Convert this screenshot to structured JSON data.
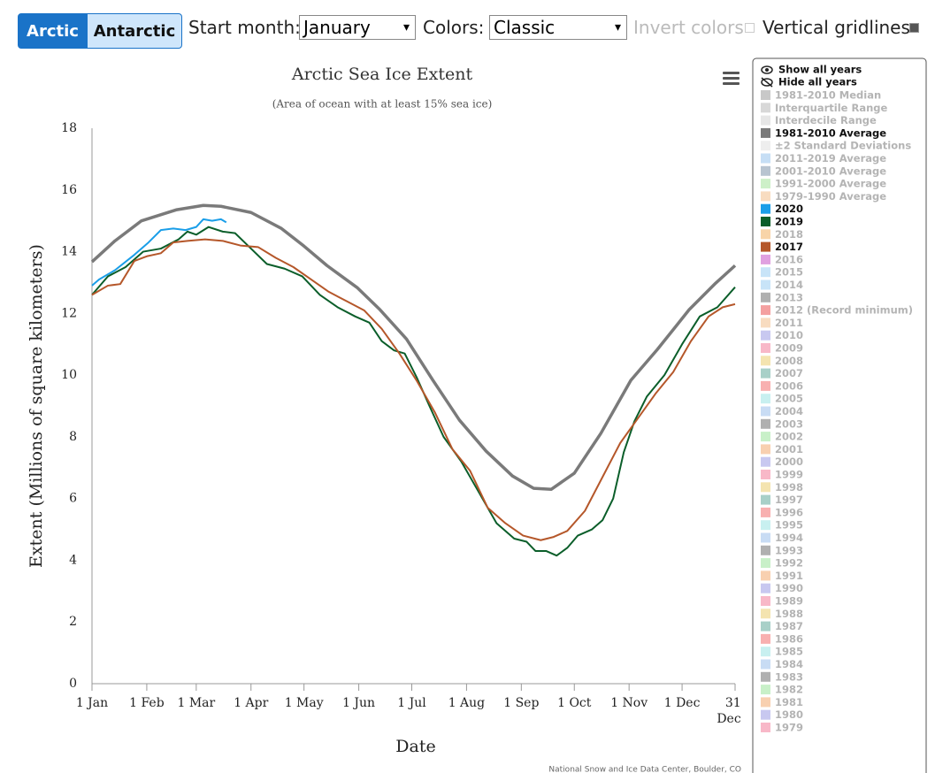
{
  "controls": {
    "hemisphere_buttons": [
      "Arctic",
      "Antarctic"
    ],
    "start_month_label": "Start month:",
    "start_month": "January",
    "colors_label": "Colors:",
    "colors": "Classic",
    "invert_colors": "Invert colors",
    "vertical_gridlines": "Vertical gridlines"
  },
  "chart_data": {
    "type": "line",
    "title": "Arctic Sea Ice Extent",
    "subtitle": "(Area of ocean with at least 15% sea ice)",
    "y_label": "Extent (Millions of square kilometers)",
    "x_label": "Date",
    "credit": "National Snow and Ice Data Center, Boulder, CO",
    "xlim": [
      1,
      365
    ],
    "ylim": [
      0,
      18
    ],
    "yticks": [
      0,
      2,
      4,
      6,
      8,
      10,
      12,
      14,
      16,
      18
    ],
    "grid": false,
    "xticks": [
      {
        "value": 1,
        "label": "1 Jan"
      },
      {
        "value": 32,
        "label": "1 Feb"
      },
      {
        "value": 60,
        "label": "1 Mar"
      },
      {
        "value": 91,
        "label": "1 Apr"
      },
      {
        "value": 121,
        "label": "1 May"
      },
      {
        "value": 152,
        "label": "1 Jun"
      },
      {
        "value": 182,
        "label": "1 Jul"
      },
      {
        "value": 213,
        "label": "1 Aug"
      },
      {
        "value": 244,
        "label": "1 Sep"
      },
      {
        "value": 274,
        "label": "1 Oct"
      },
      {
        "value": 305,
        "label": "1 Nov"
      },
      {
        "value": 335,
        "label": "1 Dec"
      },
      {
        "value": 365,
        "label": "31 Dec"
      }
    ],
    "series": [
      {
        "name": "1981-2010 Average",
        "color": "#7a7a7a",
        "width": 3.5,
        "x": [
          1,
          14,
          29,
          49,
          64,
          74,
          91,
          108,
          121,
          134,
          151,
          164,
          179,
          194,
          209,
          224,
          239,
          251,
          261,
          274,
          289,
          306,
          321,
          339,
          354,
          365
        ],
        "values": [
          13.67,
          14.35,
          15.0,
          15.36,
          15.5,
          15.47,
          15.27,
          14.76,
          14.18,
          13.55,
          12.84,
          12.12,
          11.17,
          9.83,
          8.54,
          7.54,
          6.73,
          6.33,
          6.3,
          6.82,
          8.11,
          9.83,
          10.83,
          12.12,
          12.98,
          13.55
        ]
      },
      {
        "name": "2020",
        "color": "#1a9ee8",
        "width": 2,
        "x": [
          1,
          5,
          14,
          25,
          33,
          40,
          47,
          54,
          60,
          64,
          69,
          74,
          77
        ],
        "values": [
          12.9,
          13.1,
          13.4,
          13.9,
          14.3,
          14.7,
          14.75,
          14.7,
          14.8,
          15.05,
          15.0,
          15.05,
          14.95
        ]
      },
      {
        "name": "2019",
        "color": "#0b5e2a",
        "width": 2,
        "x": [
          1,
          10,
          20,
          30,
          40,
          50,
          55,
          60,
          67,
          75,
          82,
          91,
          100,
          110,
          120,
          130,
          140,
          150,
          158,
          165,
          172,
          178,
          185,
          192,
          200,
          210,
          220,
          230,
          240,
          247,
          252,
          258,
          264,
          270,
          276,
          284,
          290,
          296,
          302,
          308,
          315,
          325,
          335,
          345,
          355,
          365
        ],
        "values": [
          12.6,
          13.2,
          13.5,
          14.0,
          14.1,
          14.4,
          14.65,
          14.55,
          14.8,
          14.65,
          14.6,
          14.1,
          13.6,
          13.45,
          13.2,
          12.6,
          12.2,
          11.9,
          11.7,
          11.1,
          10.8,
          10.7,
          9.9,
          9.0,
          8.0,
          7.2,
          6.2,
          5.2,
          4.7,
          4.6,
          4.3,
          4.3,
          4.15,
          4.4,
          4.8,
          5.0,
          5.3,
          6.0,
          7.5,
          8.5,
          9.3,
          10.0,
          11.0,
          11.9,
          12.2,
          12.85
        ]
      },
      {
        "name": "2017",
        "color": "#b5572a",
        "width": 2,
        "x": [
          1,
          10,
          17,
          25,
          32,
          40,
          47,
          55,
          65,
          75,
          85,
          95,
          105,
          115,
          125,
          135,
          145,
          155,
          165,
          175,
          185,
          195,
          205,
          215,
          225,
          235,
          245,
          255,
          262,
          270,
          280,
          290,
          300,
          310,
          320,
          330,
          340,
          350,
          358,
          365
        ],
        "values": [
          12.6,
          12.9,
          12.95,
          13.7,
          13.85,
          13.95,
          14.3,
          14.35,
          14.4,
          14.35,
          14.2,
          14.15,
          13.8,
          13.5,
          13.1,
          12.7,
          12.4,
          12.1,
          11.5,
          10.7,
          9.8,
          8.8,
          7.6,
          6.9,
          5.7,
          5.2,
          4.8,
          4.65,
          4.75,
          4.95,
          5.6,
          6.7,
          7.8,
          8.6,
          9.4,
          10.1,
          11.1,
          11.9,
          12.2,
          12.3
        ]
      }
    ]
  },
  "legend": {
    "show_all": "Show all years",
    "hide_all": "Hide all years",
    "items": [
      {
        "name": "1981-2010 Median",
        "color": "#c8c8c8",
        "active": false
      },
      {
        "name": "Interquartile Range",
        "color": "#d8d8d8",
        "active": false
      },
      {
        "name": "Interdecile Range",
        "color": "#e6e6e6",
        "active": false
      },
      {
        "name": "1981-2010 Average",
        "color": "#7a7a7a",
        "active": true
      },
      {
        "name": "±2 Standard Deviations",
        "color": "#eeeeee",
        "active": false
      },
      {
        "name": "2011-2019 Average",
        "color": "#c6def5",
        "active": false
      },
      {
        "name": "2001-2010 Average",
        "color": "#b8c4d0",
        "active": false
      },
      {
        "name": "1991-2000 Average",
        "color": "#cdf0c8",
        "active": false
      },
      {
        "name": "1979-1990 Average",
        "color": "#f8dcc0",
        "active": false
      },
      {
        "name": "2020",
        "color": "#1a9ee8",
        "active": true
      },
      {
        "name": "2019",
        "color": "#0b5e2a",
        "active": true
      },
      {
        "name": "2018",
        "color": "#f8d4a8",
        "active": false
      },
      {
        "name": "2017",
        "color": "#b5572a",
        "active": true
      },
      {
        "name": "2016",
        "color": "#e0a0e0",
        "active": false
      },
      {
        "name": "2015",
        "color": "#c8e4f8",
        "active": false
      },
      {
        "name": "2014",
        "color": "#c8e4f8",
        "active": false
      },
      {
        "name": "2013",
        "color": "#b0b0b0",
        "active": false
      },
      {
        "name": "2012 (Record minimum)",
        "color": "#f4a0a0",
        "active": false
      },
      {
        "name": "2011",
        "color": "#f8dcc0",
        "active": false
      },
      {
        "name": "2010",
        "color": "#c8c8f0",
        "active": false
      },
      {
        "name": "2009",
        "color": "#f8b8c8",
        "active": false
      },
      {
        "name": "2008",
        "color": "#f4e4b0",
        "active": false
      },
      {
        "name": "2007",
        "color": "#a8d0c8",
        "active": false
      },
      {
        "name": "2006",
        "color": "#f8b0b0",
        "active": false
      },
      {
        "name": "2005",
        "color": "#c8f0f0",
        "active": false
      },
      {
        "name": "2004",
        "color": "#c8dcf4",
        "active": false
      },
      {
        "name": "2003",
        "color": "#b0b0b0",
        "active": false
      },
      {
        "name": "2002",
        "color": "#c8f0c8",
        "active": false
      },
      {
        "name": "2001",
        "color": "#f8d0b0",
        "active": false
      },
      {
        "name": "2000",
        "color": "#c8c8f0",
        "active": false
      },
      {
        "name": "1999",
        "color": "#f8b8c8",
        "active": false
      },
      {
        "name": "1998",
        "color": "#f4e4b0",
        "active": false
      },
      {
        "name": "1997",
        "color": "#a8d0c8",
        "active": false
      },
      {
        "name": "1996",
        "color": "#f8b0b0",
        "active": false
      },
      {
        "name": "1995",
        "color": "#c8f0f0",
        "active": false
      },
      {
        "name": "1994",
        "color": "#c8dcf4",
        "active": false
      },
      {
        "name": "1993",
        "color": "#b0b0b0",
        "active": false
      },
      {
        "name": "1992",
        "color": "#c8f0c8",
        "active": false
      },
      {
        "name": "1991",
        "color": "#f8d0b0",
        "active": false
      },
      {
        "name": "1990",
        "color": "#c8c8f0",
        "active": false
      },
      {
        "name": "1989",
        "color": "#f8b8c8",
        "active": false
      },
      {
        "name": "1988",
        "color": "#f4e4b0",
        "active": false
      },
      {
        "name": "1987",
        "color": "#a8d0c8",
        "active": false
      },
      {
        "name": "1986",
        "color": "#f8b0b0",
        "active": false
      },
      {
        "name": "1985",
        "color": "#c8f0f0",
        "active": false
      },
      {
        "name": "1984",
        "color": "#c8dcf4",
        "active": false
      },
      {
        "name": "1983",
        "color": "#b0b0b0",
        "active": false
      },
      {
        "name": "1982",
        "color": "#c8f0c8",
        "active": false
      },
      {
        "name": "1981",
        "color": "#f8d0b0",
        "active": false
      },
      {
        "name": "1980",
        "color": "#c8c8f0",
        "active": false
      },
      {
        "name": "1979",
        "color": "#f8b8c8",
        "active": false
      }
    ]
  }
}
